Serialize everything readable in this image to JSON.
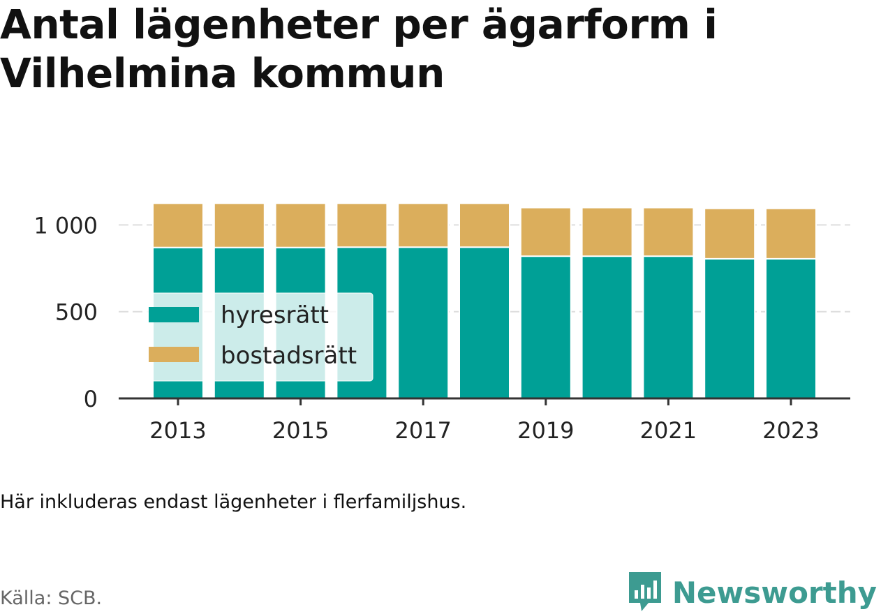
{
  "title": "Antal lägenheter per ägarform i Vilhelmina kommun",
  "note": "Här inkluderas endast lägenheter i flerfamiljshus.",
  "source": "Källa: SCB.",
  "brand": {
    "name": "Newsworthy",
    "icon": "newsworthy-logo-icon",
    "color": "#3d9b91"
  },
  "colors": {
    "hyresratt": "#00a096",
    "bostadsratt": "#dbae5c",
    "axis": "#333333",
    "grid": "#dddddd"
  },
  "chart_data": {
    "type": "bar",
    "stacked": true,
    "categories": [
      "2013",
      "2014",
      "2015",
      "2016",
      "2017",
      "2018",
      "2019",
      "2020",
      "2021",
      "2022",
      "2023"
    ],
    "x_tick_labels": [
      "2013",
      "2015",
      "2017",
      "2019",
      "2021",
      "2023"
    ],
    "series": [
      {
        "name": "hyresrätt",
        "color": "#00a096",
        "values": [
          870,
          870,
          870,
          872,
          872,
          872,
          820,
          820,
          820,
          805,
          805
        ]
      },
      {
        "name": "bostadsrätt",
        "color": "#dbae5c",
        "values": [
          255,
          255,
          255,
          253,
          253,
          253,
          280,
          280,
          280,
          290,
          290
        ]
      }
    ],
    "y_ticks": [
      0,
      500,
      1000
    ],
    "y_tick_labels": [
      "0",
      "500",
      "1 000"
    ],
    "ylim": [
      0,
      1130
    ],
    "grid": true,
    "legend_position": "lower-left",
    "xlabel": "",
    "ylabel": ""
  }
}
